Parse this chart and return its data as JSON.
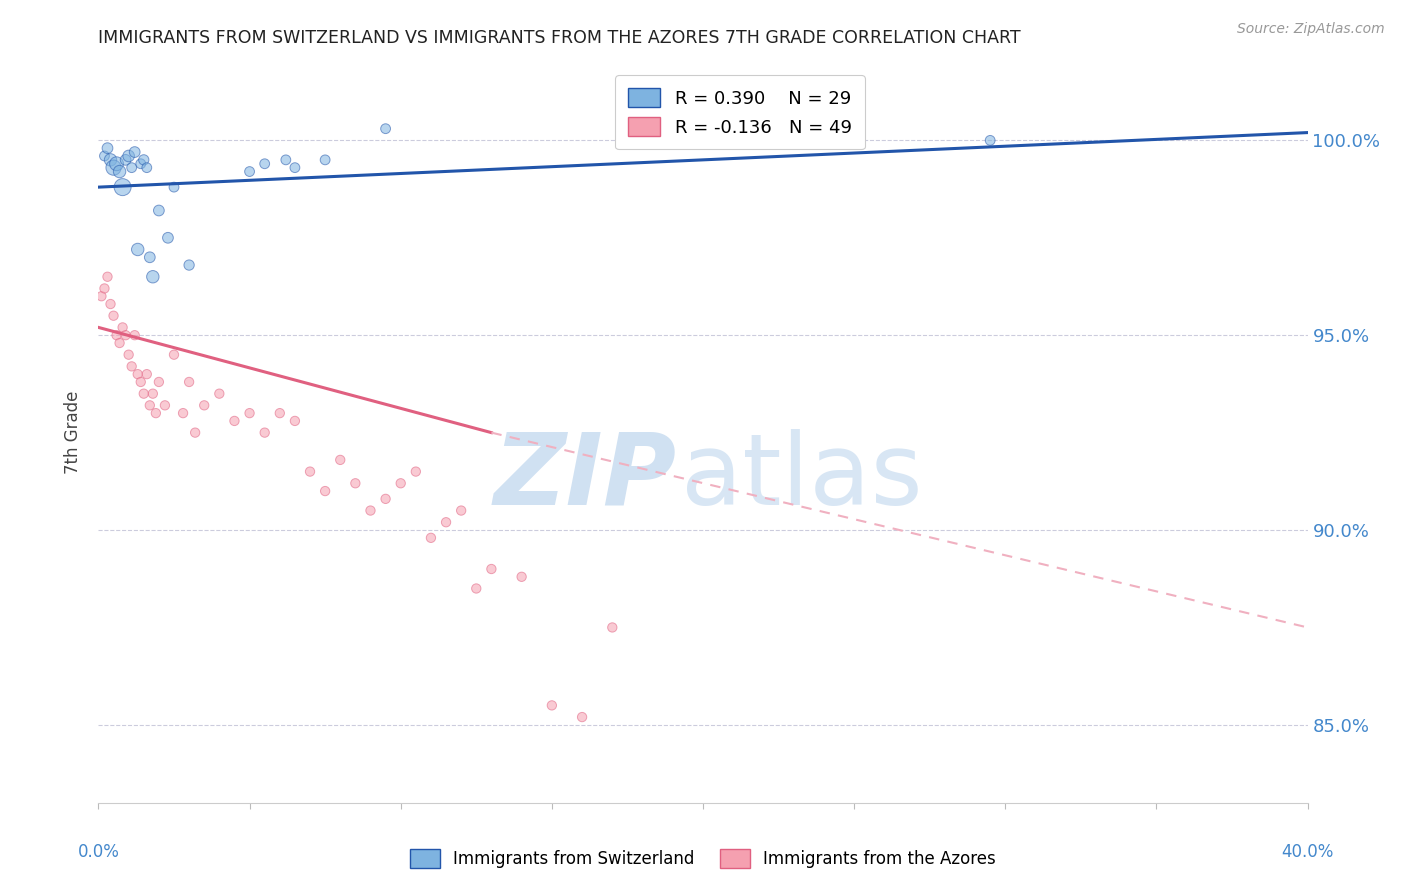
{
  "title": "IMMIGRANTS FROM SWITZERLAND VS IMMIGRANTS FROM THE AZORES 7TH GRADE CORRELATION CHART",
  "source": "Source: ZipAtlas.com",
  "ylabel": "7th Grade",
  "yticks": [
    85.0,
    90.0,
    95.0,
    100.0
  ],
  "ytick_labels": [
    "85.0%",
    "90.0%",
    "95.0%",
    "100.0%"
  ],
  "xlim": [
    0.0,
    40.0
  ],
  "ylim": [
    83.0,
    102.0
  ],
  "legend_R_blue": "R = 0.390",
  "legend_N_blue": "N = 29",
  "legend_R_pink": "R = -0.136",
  "legend_N_pink": "N = 49",
  "color_blue": "#7EB3E0",
  "color_pink": "#F5A0B0",
  "color_trendline_blue": "#2255AA",
  "color_trendline_pink": "#E06080",
  "color_axis_labels": "#4488CC",
  "blue_trendline_x0": 0.0,
  "blue_trendline_y0": 98.8,
  "blue_trendline_x1": 40.0,
  "blue_trendline_y1": 100.2,
  "pink_solid_x0": 0.0,
  "pink_solid_y0": 95.2,
  "pink_solid_x1": 13.0,
  "pink_solid_y1": 92.5,
  "pink_dashed_x0": 13.0,
  "pink_dashed_y0": 92.5,
  "pink_dashed_x1": 40.0,
  "pink_dashed_y1": 87.5,
  "switzerland_x": [
    0.2,
    0.3,
    0.4,
    0.5,
    0.6,
    0.7,
    0.8,
    0.9,
    1.0,
    1.1,
    1.2,
    1.3,
    1.4,
    1.5,
    1.6,
    1.7,
    1.8,
    2.0,
    2.3,
    2.5,
    3.0,
    5.0,
    5.5,
    6.2,
    6.5,
    7.5,
    9.5,
    21.5,
    29.5
  ],
  "switzerland_y": [
    99.6,
    99.8,
    99.5,
    99.3,
    99.4,
    99.2,
    98.8,
    99.5,
    99.6,
    99.3,
    99.7,
    97.2,
    99.4,
    99.5,
    99.3,
    97.0,
    96.5,
    98.2,
    97.5,
    98.8,
    96.8,
    99.2,
    99.4,
    99.5,
    99.3,
    99.5,
    100.3,
    100.1,
    100.0
  ],
  "switzerland_sizes": [
    50,
    60,
    80,
    120,
    100,
    80,
    150,
    60,
    70,
    50,
    60,
    80,
    50,
    55,
    50,
    60,
    80,
    60,
    60,
    50,
    55,
    50,
    50,
    50,
    50,
    50,
    50,
    50,
    50
  ],
  "azores_x": [
    0.1,
    0.2,
    0.3,
    0.4,
    0.5,
    0.6,
    0.7,
    0.8,
    0.9,
    1.0,
    1.1,
    1.2,
    1.3,
    1.4,
    1.5,
    1.6,
    1.7,
    1.8,
    1.9,
    2.0,
    2.2,
    2.5,
    2.8,
    3.0,
    3.2,
    3.5,
    4.0,
    4.5,
    5.0,
    5.5,
    6.0,
    6.5,
    7.0,
    7.5,
    8.0,
    8.5,
    9.0,
    9.5,
    10.0,
    10.5,
    11.0,
    11.5,
    12.0,
    12.5,
    13.0,
    14.0,
    15.0,
    16.0,
    17.0
  ],
  "azores_y": [
    96.0,
    96.2,
    96.5,
    95.8,
    95.5,
    95.0,
    94.8,
    95.2,
    95.0,
    94.5,
    94.2,
    95.0,
    94.0,
    93.8,
    93.5,
    94.0,
    93.2,
    93.5,
    93.0,
    93.8,
    93.2,
    94.5,
    93.0,
    93.8,
    92.5,
    93.2,
    93.5,
    92.8,
    93.0,
    92.5,
    93.0,
    92.8,
    91.5,
    91.0,
    91.8,
    91.2,
    90.5,
    90.8,
    91.2,
    91.5,
    89.8,
    90.2,
    90.5,
    88.5,
    89.0,
    88.8,
    85.5,
    85.2,
    87.5
  ],
  "azores_sizes": [
    45,
    45,
    45,
    45,
    45,
    45,
    45,
    45,
    45,
    45,
    45,
    45,
    45,
    45,
    45,
    45,
    45,
    45,
    45,
    45,
    45,
    45,
    45,
    45,
    45,
    45,
    45,
    45,
    45,
    45,
    45,
    45,
    45,
    45,
    45,
    45,
    45,
    45,
    45,
    45,
    45,
    45,
    45,
    45,
    45,
    45,
    45,
    45,
    45
  ]
}
